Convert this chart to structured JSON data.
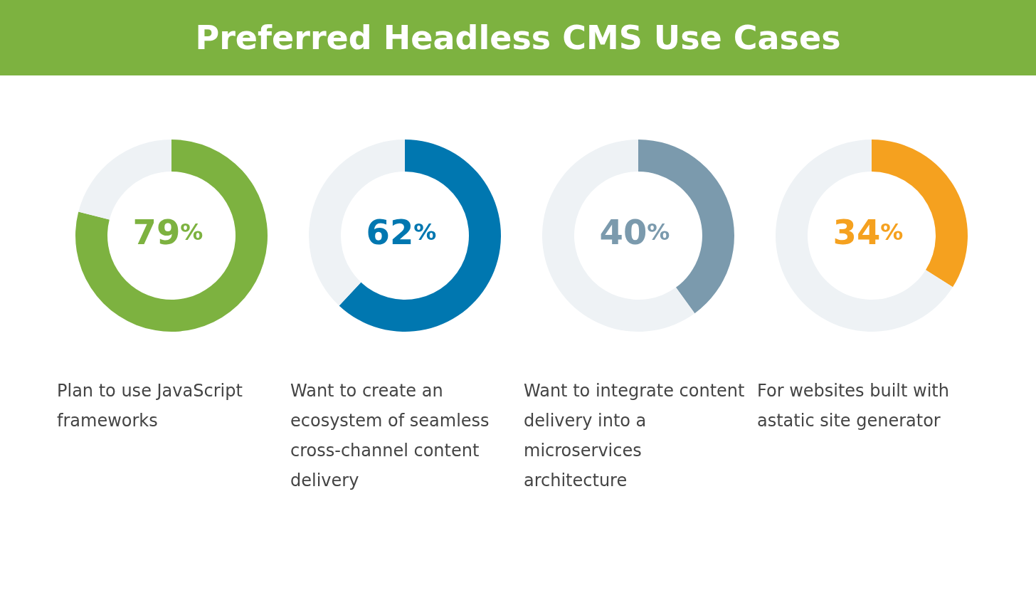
{
  "chart_data": [
    {
      "type": "donut",
      "title": "Preferred Headless CMS Use Cases",
      "categories": [
        null,
        null
      ],
      "values": [
        79,
        21
      ],
      "colors": [
        "#7db240",
        "#eef2f5"
      ],
      "annotations": [
        "79%",
        "Plan to use JavaScript frameworks"
      ]
    },
    {
      "type": "donut",
      "categories": [
        null,
        null
      ],
      "values": [
        62,
        38
      ],
      "colors": [
        "#0077b0",
        "#eef2f5"
      ],
      "annotations": [
        "62%",
        "Want to create an ecosystem of seamless cross-channel content delivery"
      ]
    },
    {
      "type": "donut",
      "categories": [
        null,
        null
      ],
      "values": [
        40,
        60
      ],
      "colors": [
        "#7b9aad",
        "#eef2f5"
      ],
      "annotations": [
        "40%",
        "Want to integrate content delivery into a microservices architecture"
      ]
    },
    {
      "type": "donut",
      "categories": [
        null,
        null
      ],
      "values": [
        34,
        66
      ],
      "colors": [
        "#f5a11f",
        "#eef2f5"
      ],
      "annotations": [
        "34%",
        "For websites built with astatic site generator"
      ]
    }
  ]
}
